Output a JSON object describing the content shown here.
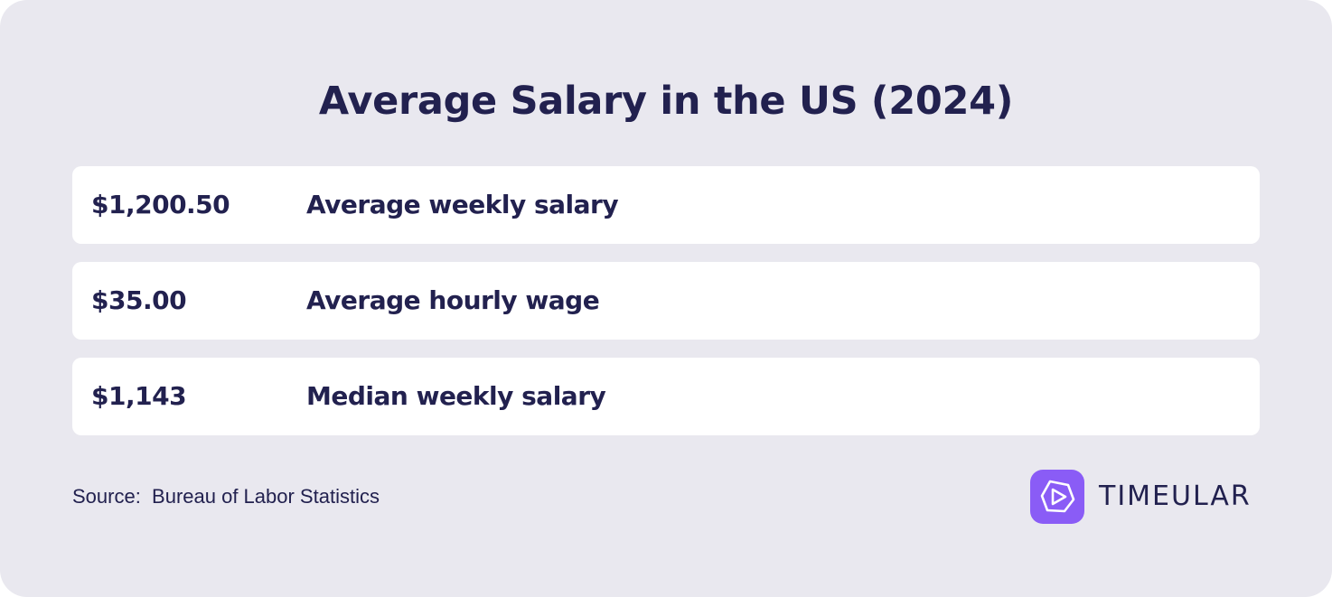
{
  "title": "Average Salary in the US (2024)",
  "rows": [
    {
      "value": "$1,200.50",
      "label": "Average weekly salary"
    },
    {
      "value": "$35.00",
      "label": "Average hourly wage"
    },
    {
      "value": "$1,143",
      "label": "Median weekly salary"
    }
  ],
  "source": "Source:  Bureau of Labor Statistics",
  "brand": {
    "name": "TIMEULAR",
    "icon": "timeular-logo-icon",
    "color": "#8a5cf6"
  },
  "colors": {
    "text": "#22214f",
    "background": "#e9e8ef",
    "row": "#ffffff"
  }
}
